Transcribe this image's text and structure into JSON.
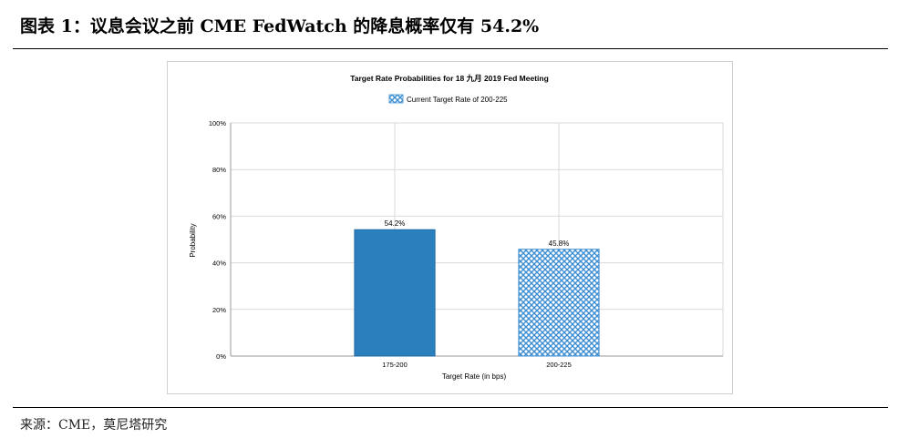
{
  "figure": {
    "title": "图表 1：议息会议之前 CME FedWatch 的降息概率仅有 54.2%",
    "source": "来源：CME，莫尼塔研究"
  },
  "colors": {
    "bar_solid": "#2a7fbc",
    "bar_hatch": "#3d8ed1",
    "grid": "#d9d9d9"
  },
  "chart_data": {
    "type": "bar",
    "title": "Target Rate Probabilities for 18 九月 2019 Fed Meeting",
    "legend": {
      "label": "Current Target Rate of 200-225",
      "position": "top"
    },
    "xlabel": "Target Rate (in bps)",
    "ylabel": "Probability",
    "categories": [
      "175-200",
      "200-225"
    ],
    "values": [
      54.2,
      45.8
    ],
    "value_labels": [
      "54.2%",
      "45.8%"
    ],
    "bar_styles": [
      "solid",
      "hatched"
    ],
    "ylim": [
      0,
      100
    ],
    "yticks": [
      0,
      20,
      40,
      60,
      80,
      100
    ],
    "ytick_labels": [
      "0%",
      "20%",
      "40%",
      "60%",
      "80%",
      "100%"
    ],
    "grid": true
  }
}
